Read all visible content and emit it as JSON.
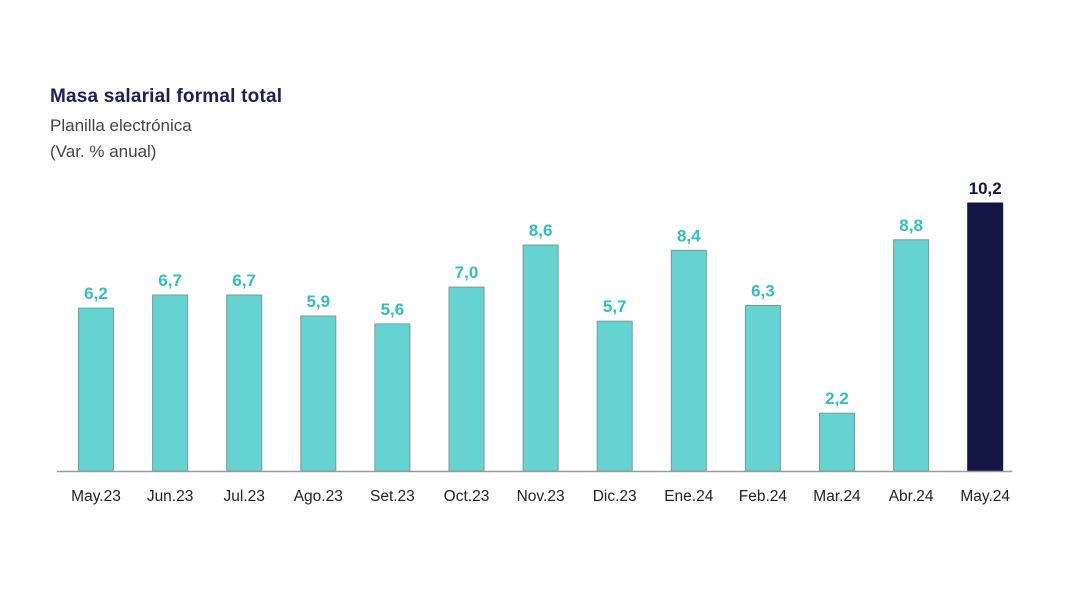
{
  "chart_data": {
    "type": "bar",
    "title": "Masa salarial formal total",
    "subtitle": "Planilla electrónica",
    "unit_label": "(Var. % anual)",
    "categories": [
      "May.23",
      "Jun.23",
      "Jul.23",
      "Ago.23",
      "Set.23",
      "Oct.23",
      "Nov.23",
      "Dic.23",
      "Ene.24",
      "Feb.24",
      "Mar.24",
      "Abr.24",
      "May.24"
    ],
    "values": [
      6.2,
      6.7,
      6.7,
      5.9,
      5.6,
      7.0,
      8.6,
      5.7,
      8.4,
      6.3,
      2.2,
      8.8,
      10.2
    ],
    "value_labels": [
      "6,2",
      "6,7",
      "6,7",
      "5,9",
      "5,6",
      "7,0",
      "8,6",
      "5,7",
      "8,4",
      "6,3",
      "2,2",
      "8,8",
      "10,2"
    ],
    "highlight_index": 12,
    "colors": {
      "bar": "#66d3d3",
      "bar_border": "#7a9a9a",
      "highlight_bar": "#141745",
      "value_label": "#2fbfc2",
      "highlight_label": "#141745",
      "title": "#1b1f5e",
      "axis": "#9a9a9a"
    },
    "ylim": [
      0,
      10.2
    ],
    "grid": false,
    "legend": "none"
  }
}
